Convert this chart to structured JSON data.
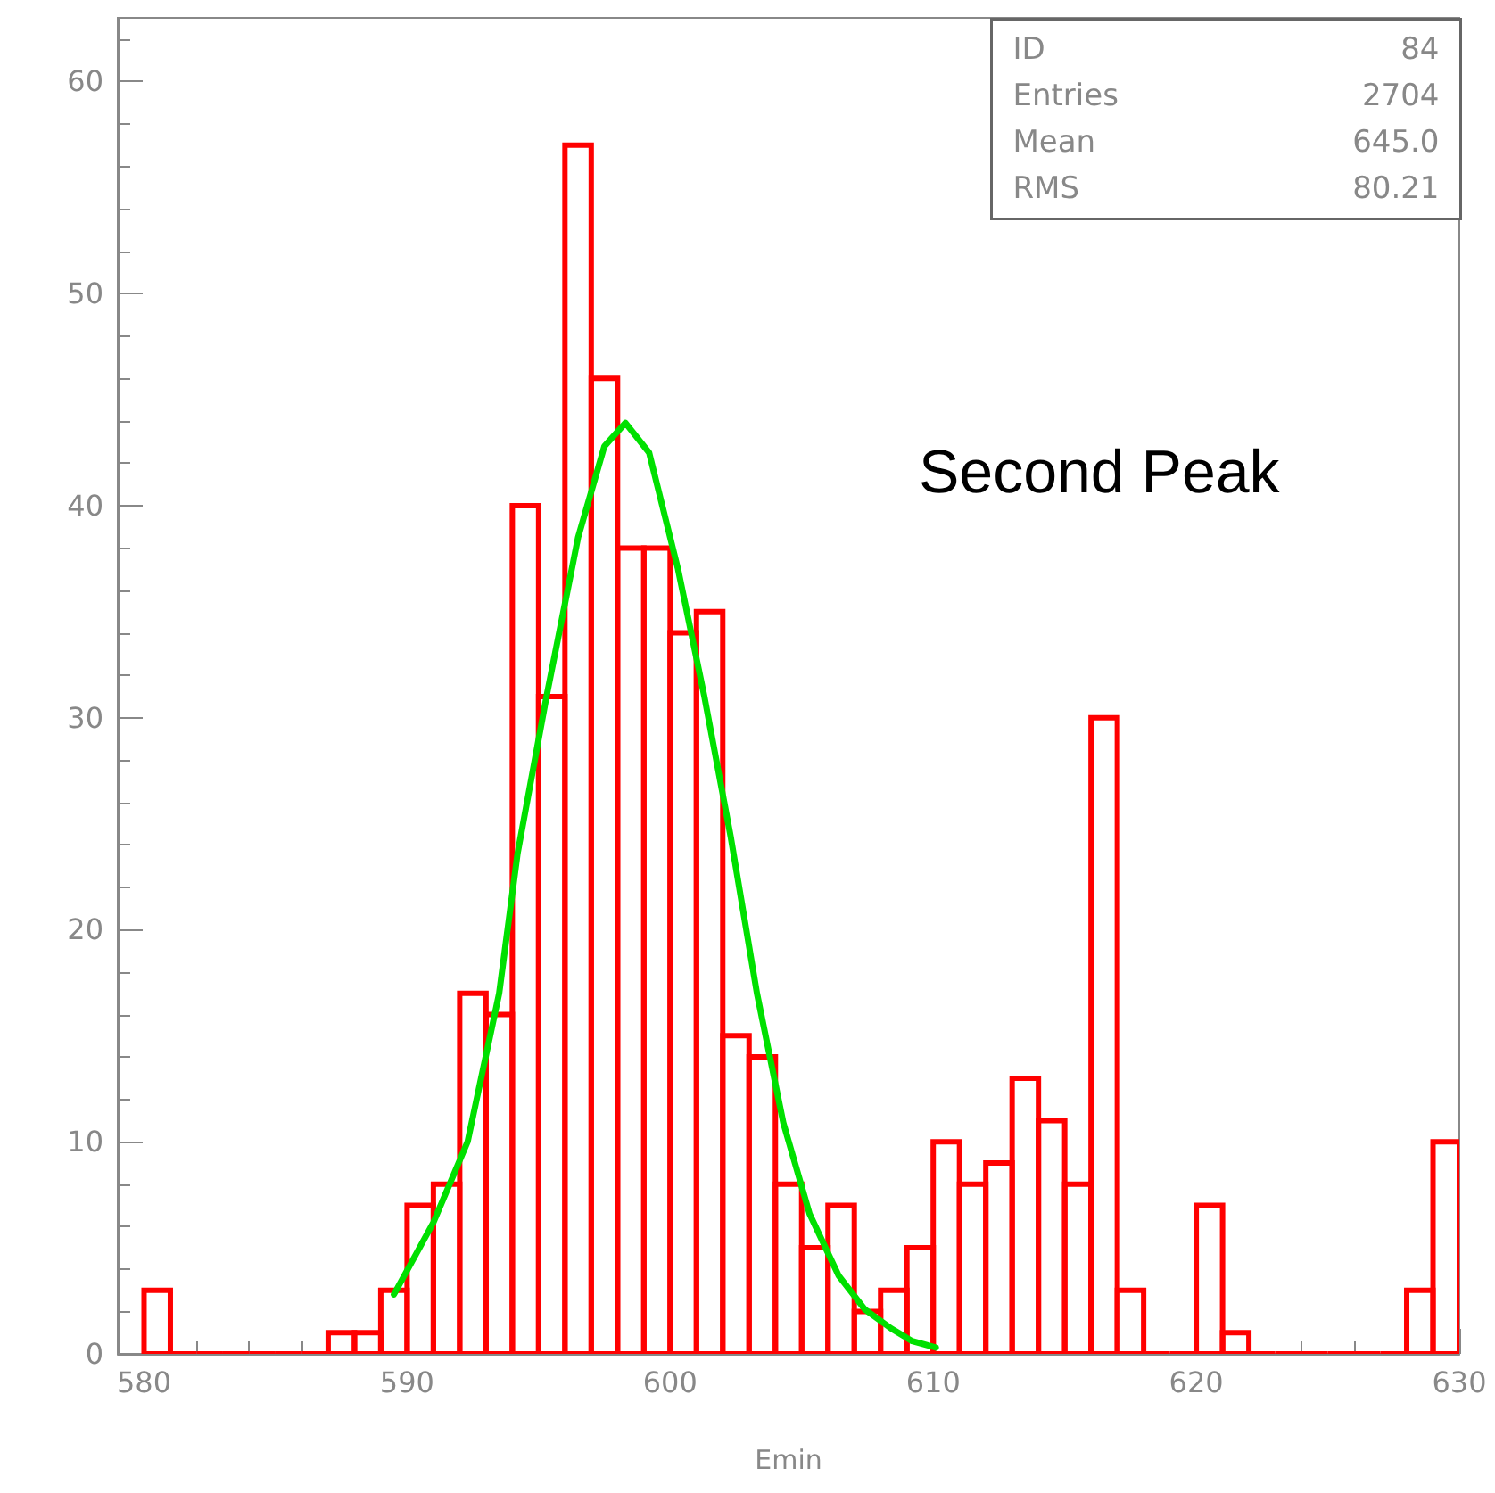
{
  "chart_data": {
    "type": "histogram",
    "xlabel": "Emin",
    "bins": [
      580,
      581,
      582,
      583,
      584,
      585,
      586,
      587,
      588,
      589,
      590,
      591,
      592,
      593,
      594,
      595,
      596,
      597,
      598,
      599,
      600,
      601,
      602,
      603,
      604,
      605,
      606,
      607,
      608,
      609,
      610,
      611,
      612,
      613,
      614,
      615,
      616,
      617,
      618,
      619,
      620,
      621,
      622,
      623,
      624,
      625,
      626,
      627,
      628,
      629,
      630
    ],
    "series": [
      {
        "color": "#ff0000",
        "values": [
          3,
          0,
          0,
          0,
          0,
          0,
          0,
          1,
          1,
          3,
          7,
          8,
          17,
          16,
          40,
          31,
          57,
          46,
          38,
          38,
          34,
          35,
          15,
          14,
          8,
          5,
          7,
          2,
          3,
          5,
          10,
          8,
          9,
          13,
          11,
          8,
          30,
          3,
          0,
          0,
          7,
          1,
          0,
          0,
          0,
          0,
          0,
          0,
          3,
          10
        ]
      },
      {
        "type": "line",
        "color": "#00e000",
        "x": [
          589.5,
          591,
          592.3,
          593.5,
          594.2,
          595.3,
          596.5,
          597.5,
          598.3,
          599.2,
          600.3,
          601.3,
          602.3,
          603.3,
          604.3,
          605.3,
          606.4,
          607.4,
          608.4,
          609.2,
          610.1
        ],
        "values": [
          2.8,
          6.2,
          10,
          17,
          23.6,
          31,
          38.5,
          42.8,
          43.9,
          42.5,
          37,
          31,
          24.4,
          17,
          10.9,
          6.6,
          3.7,
          2.1,
          1.2,
          0.6,
          0.3
        ]
      }
    ],
    "xlim": [
      579,
      630
    ],
    "xticks": [
      580,
      590,
      600,
      610,
      620,
      630
    ],
    "ylim": [
      0,
      63
    ],
    "yticks": [
      0,
      10,
      20,
      30,
      40,
      50,
      60
    ],
    "grid": false,
    "marker": "none",
    "line_style": "solid",
    "annotations": [
      "ID 84",
      "Entries 2704",
      "Mean 645.0",
      "RMS 80.21",
      "Second Peak"
    ]
  }
}
